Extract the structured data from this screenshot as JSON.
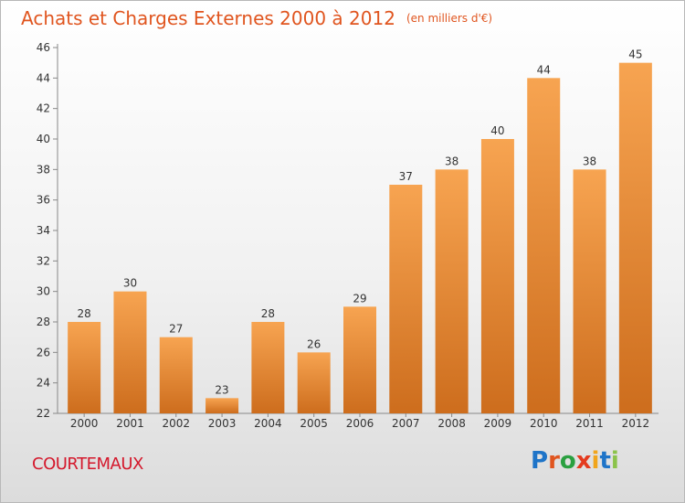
{
  "chart": {
    "title": "Achats et Charges Externes 2000 à 2012",
    "unit": "(en milliers d'€)",
    "commune": "COURTEMAUX",
    "logo_text": "Proxiti"
  },
  "colors": {
    "title": "#e0551f",
    "commune": "#d4182c",
    "bar_light": "#f6a24e",
    "bar_dark": "#d06f1f",
    "logo": [
      "#1e74c8",
      "#e0551f",
      "#2aa040",
      "#e43a1e",
      "#f1a51b",
      "#1e74c8",
      "#8bc34a"
    ]
  },
  "chart_data": {
    "type": "bar",
    "categories": [
      "2000",
      "2001",
      "2002",
      "2003",
      "2004",
      "2005",
      "2006",
      "2007",
      "2008",
      "2009",
      "2010",
      "2011",
      "2012"
    ],
    "values": [
      28,
      30,
      27,
      23,
      28,
      26,
      29,
      37,
      38,
      40,
      44,
      38,
      45
    ],
    "title": "Achats et Charges Externes 2000 à 2012",
    "ylim": [
      22,
      46
    ],
    "yticks": [
      22,
      24,
      26,
      28,
      30,
      32,
      34,
      36,
      38,
      40,
      42,
      44,
      46
    ],
    "grid": false,
    "legend": "none"
  }
}
